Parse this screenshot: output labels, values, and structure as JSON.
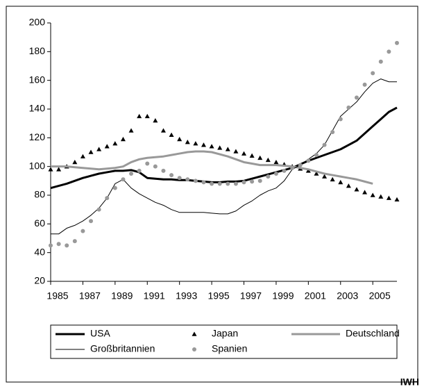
{
  "chart_data": {
    "type": "line",
    "x": [
      1985,
      1985.5,
      1986,
      1986.5,
      1987,
      1987.5,
      1988,
      1988.5,
      1989,
      1989.5,
      1990,
      1990.5,
      1991,
      1991.5,
      1992,
      1992.5,
      1993,
      1993.5,
      1994,
      1994.5,
      1995,
      1995.5,
      1996,
      1996.5,
      1997,
      1997.5,
      1998,
      1998.5,
      1999,
      1999.5,
      2000,
      2000.5,
      2001,
      2001.5,
      2002,
      2002.5,
      2003,
      2003.5,
      2004,
      2004.5,
      2005,
      2005.5,
      2006,
      2006.5
    ],
    "series": [
      {
        "name": "USA",
        "color": "#000000",
        "style": "line",
        "width": 3,
        "values": [
          85,
          86.5,
          88,
          90,
          92,
          93.5,
          95,
          96,
          97,
          97,
          97.5,
          96,
          92,
          91.5,
          91,
          91,
          90.5,
          90.5,
          90,
          89.5,
          89,
          89,
          89.5,
          89.5,
          90,
          91.5,
          93,
          94.5,
          96,
          97.5,
          99,
          101.5,
          104,
          106,
          108,
          110,
          112,
          115,
          118,
          123,
          128,
          133,
          138,
          141
        ]
      },
      {
        "name": "Japan",
        "color": "#000000",
        "style": "triangle",
        "width": 0,
        "values": [
          98,
          98,
          100,
          103,
          107,
          110,
          112,
          114,
          116,
          119,
          125,
          135,
          135,
          132,
          125,
          122,
          119,
          117,
          116,
          115,
          114,
          113,
          112,
          110.5,
          109,
          107.5,
          106,
          104.5,
          103,
          101.5,
          100,
          98.5,
          97,
          95,
          93,
          91,
          89,
          86.5,
          84,
          82,
          80,
          79,
          78,
          77
        ]
      },
      {
        "name": "Deutschland",
        "color": "#999999",
        "style": "line",
        "width": 3,
        "values": [
          100,
          100,
          100,
          99.5,
          99,
          98.5,
          98,
          98.5,
          99,
          100,
          103,
          105,
          106,
          106.5,
          107,
          108,
          109,
          110,
          110.5,
          110.5,
          110,
          108.5,
          107,
          105,
          103,
          102,
          101,
          101,
          101,
          100.5,
          100,
          99,
          98,
          96.5,
          95,
          94,
          93,
          92,
          91,
          89.5,
          88,
          null,
          null,
          null
        ]
      },
      {
        "name": "Großbritannien",
        "color": "#000000",
        "style": "line",
        "width": 1,
        "values": [
          53,
          53,
          57,
          59,
          62,
          66,
          71,
          78,
          88,
          91,
          85,
          81,
          78,
          75,
          73,
          70,
          68,
          68,
          68,
          68,
          67.5,
          67,
          67,
          69,
          73,
          76,
          80,
          83,
          85,
          90,
          98,
          101,
          105,
          109,
          115,
          125,
          135,
          140,
          145,
          152,
          158,
          161,
          159,
          159
        ]
      },
      {
        "name": "Spanien",
        "color": "#999999",
        "style": "dot",
        "width": 0,
        "values": [
          45,
          46,
          45,
          48,
          55,
          62,
          70,
          78,
          85,
          91,
          95,
          97,
          102,
          100,
          97,
          94,
          92,
          91,
          90,
          89,
          88,
          88,
          88,
          88,
          89,
          89.5,
          90,
          93,
          95,
          97,
          99,
          101,
          104,
          108,
          115,
          124,
          133,
          141,
          148,
          157,
          165,
          173,
          180,
          186
        ]
      }
    ],
    "xlim": [
      1985,
      2006.5
    ],
    "xticks": [
      1985,
      1987,
      1989,
      1991,
      1993,
      1995,
      1997,
      1999,
      2001,
      2003,
      2005
    ],
    "ylim": [
      20,
      200
    ],
    "yticks": [
      20,
      40,
      60,
      80,
      100,
      120,
      140,
      160,
      180,
      200
    ],
    "grid": false,
    "legend": "bottom",
    "source": "IWH"
  }
}
